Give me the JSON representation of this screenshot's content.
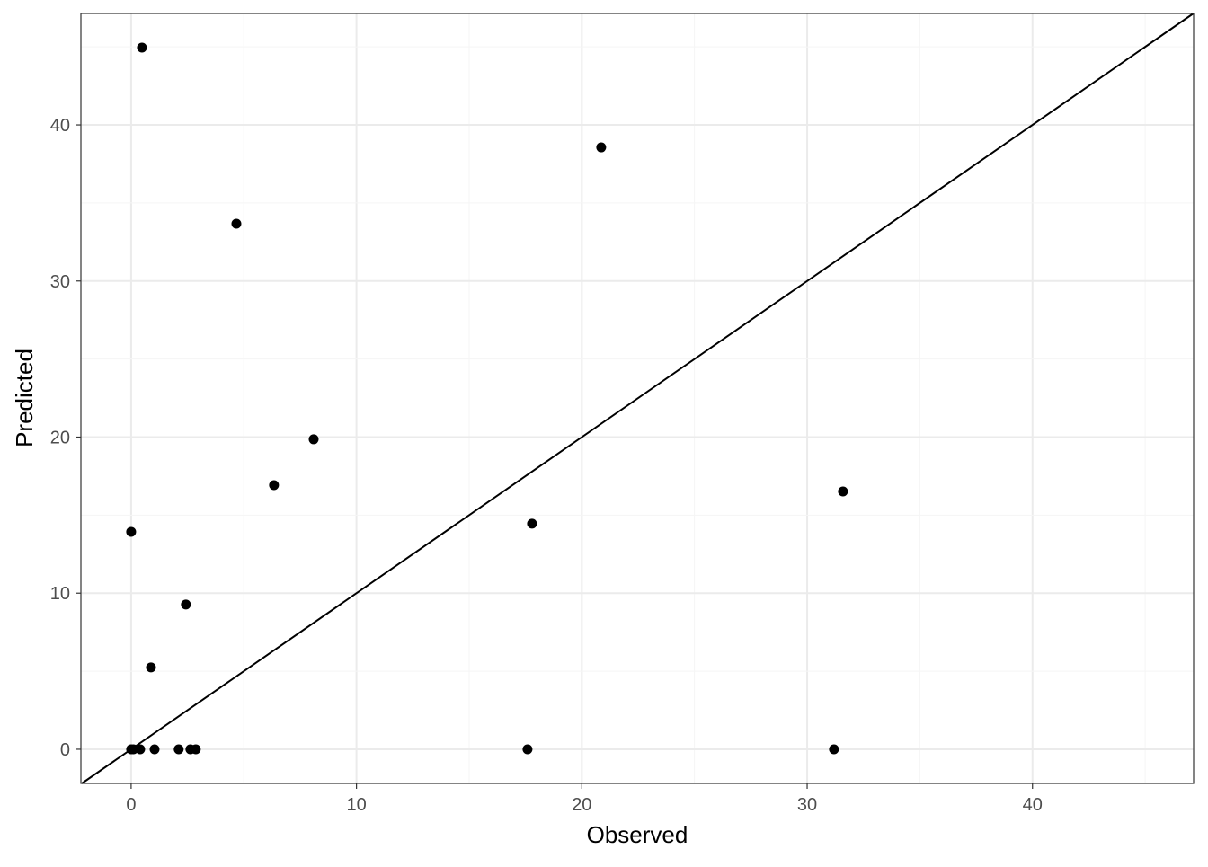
{
  "chart_data": {
    "type": "scatter",
    "title": "",
    "xlabel": "Observed",
    "ylabel": "Predicted",
    "xlim": [
      -2.23,
      47.15
    ],
    "ylim": [
      -2.19,
      47.14
    ],
    "xticks": [
      0,
      10,
      20,
      30,
      40
    ],
    "yticks": [
      0,
      10,
      20,
      30,
      40
    ],
    "grid": true,
    "reference_line": {
      "type": "identity",
      "slope": 1,
      "intercept": 0
    },
    "colors": {
      "points": "#000000",
      "line": "#000000",
      "grid_major": "#ebebeb",
      "grid_minor": "#f5f5f5"
    },
    "points": [
      {
        "x": 0.48,
        "y": 44.95
      },
      {
        "x": 20.86,
        "y": 38.56
      },
      {
        "x": 4.67,
        "y": 33.67
      },
      {
        "x": 8.1,
        "y": 19.86
      },
      {
        "x": 6.34,
        "y": 16.92
      },
      {
        "x": 17.79,
        "y": 14.45
      },
      {
        "x": 31.59,
        "y": 16.52
      },
      {
        "x": 0.0,
        "y": 13.93
      },
      {
        "x": 2.43,
        "y": 9.27
      },
      {
        "x": 0.88,
        "y": 5.24
      },
      {
        "x": 0.0,
        "y": 0.0
      },
      {
        "x": 0.1,
        "y": 0.0
      },
      {
        "x": 0.4,
        "y": 0.0
      },
      {
        "x": 1.04,
        "y": 0.0
      },
      {
        "x": 2.11,
        "y": 0.0
      },
      {
        "x": 2.63,
        "y": 0.0
      },
      {
        "x": 2.87,
        "y": 0.0
      },
      {
        "x": 17.59,
        "y": 0.0
      },
      {
        "x": 31.19,
        "y": 0.0
      }
    ]
  }
}
